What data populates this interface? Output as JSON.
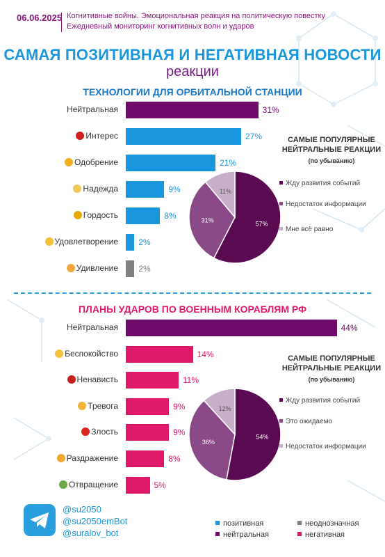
{
  "header": {
    "date": "06.06.2025",
    "subtitle_line1": "Когнитивные войны. Эмоциональная реакция на политическую повестку",
    "subtitle_line2": "Ежедневный мониторинг когнитивных волн и ударов",
    "title": "САМАЯ ПОЗИТИВНАЯ И НЕГАТИВНАЯ НОВОСТИ",
    "title_sub": "реакции"
  },
  "colors": {
    "positive": "#1a96dc",
    "neutral": "#6e0a6a",
    "ambiguous": "#808080",
    "negative": "#e0186a"
  },
  "chart_data": [
    {
      "type": "bar",
      "title": "ТЕХНОЛОГИИ ДЛЯ ОРБИТАЛЬНОЙ СТАНЦИИ",
      "categories": [
        "Нейтральная",
        "Интерес",
        "Одобрение",
        "Надежда",
        "Гордость",
        "Удовлетворение",
        "Удивление"
      ],
      "values": [
        31,
        27,
        21,
        9,
        8,
        2,
        2
      ],
      "value_labels": [
        "31%",
        "27%",
        "21%",
        "9%",
        "8%",
        "2%",
        "2%"
      ],
      "kinds": [
        "neutral",
        "positive",
        "positive",
        "positive",
        "positive",
        "positive",
        "ambiguous"
      ],
      "icons": [
        "",
        "exclamation-question-icon",
        "handshake-icon",
        "praying-hands-icon",
        "trophy-icon",
        "relieved-face-icon",
        "surprised-face-icon"
      ]
    },
    {
      "type": "pie",
      "title": "САМЫЕ ПОПУЛЯРНЫЕ НЕЙТРАЛЬНЫЕ РЕАКЦИИ",
      "subtitle": "(по убыванию)",
      "labels": [
        "Жду развития событий",
        "Недостаток информации",
        "Мне всё равно"
      ],
      "values": [
        57,
        31,
        11
      ],
      "value_labels": [
        "57%",
        "31%",
        "11%"
      ],
      "colors": [
        "#5a0a50",
        "#8a4a88",
        "#c8aec8"
      ]
    },
    {
      "type": "bar",
      "title": "ПЛАНЫ УДАРОВ ПО ВОЕННЫМ КОРАБЛЯМ РФ",
      "categories": [
        "Нейтральная",
        "Беспокойство",
        "Ненависть",
        "Тревога",
        "Злость",
        "Раздражение",
        "Отвращение"
      ],
      "values": [
        44,
        14,
        11,
        9,
        9,
        8,
        5
      ],
      "value_labels": [
        "44%",
        "14%",
        "11%",
        "9%",
        "9%",
        "8%",
        "5%"
      ],
      "kinds": [
        "neutral",
        "negative",
        "negative",
        "negative",
        "negative",
        "negative",
        "negative"
      ],
      "icons": [
        "",
        "grimacing-face-icon",
        "angry-devil-icon",
        "worried-face-icon",
        "angry-face-icon",
        "annoyed-face-icon",
        "nauseated-face-icon"
      ]
    },
    {
      "type": "pie",
      "title": "САМЫЕ ПОПУЛЯРНЫЕ НЕЙТРАЛЬНЫЕ РЕАКЦИИ",
      "subtitle": "(по убыванию)",
      "labels": [
        "Жду развития событий",
        "Это ожидаемо",
        "Недостаток информации"
      ],
      "values": [
        54,
        36,
        12
      ],
      "value_labels": [
        "54%",
        "36%",
        "12%"
      ],
      "colors": [
        "#5a0a50",
        "#8a4a88",
        "#c8aec8"
      ]
    }
  ],
  "footer": {
    "handles": [
      "@su2050",
      "@su2050emBot",
      "@suralov_bot"
    ],
    "legend": [
      {
        "label": "позитивная",
        "kind": "positive"
      },
      {
        "label": "неоднозначная",
        "kind": "ambiguous"
      },
      {
        "label": "нейтральная",
        "kind": "neutral"
      },
      {
        "label": "негативная",
        "kind": "negative"
      }
    ]
  }
}
